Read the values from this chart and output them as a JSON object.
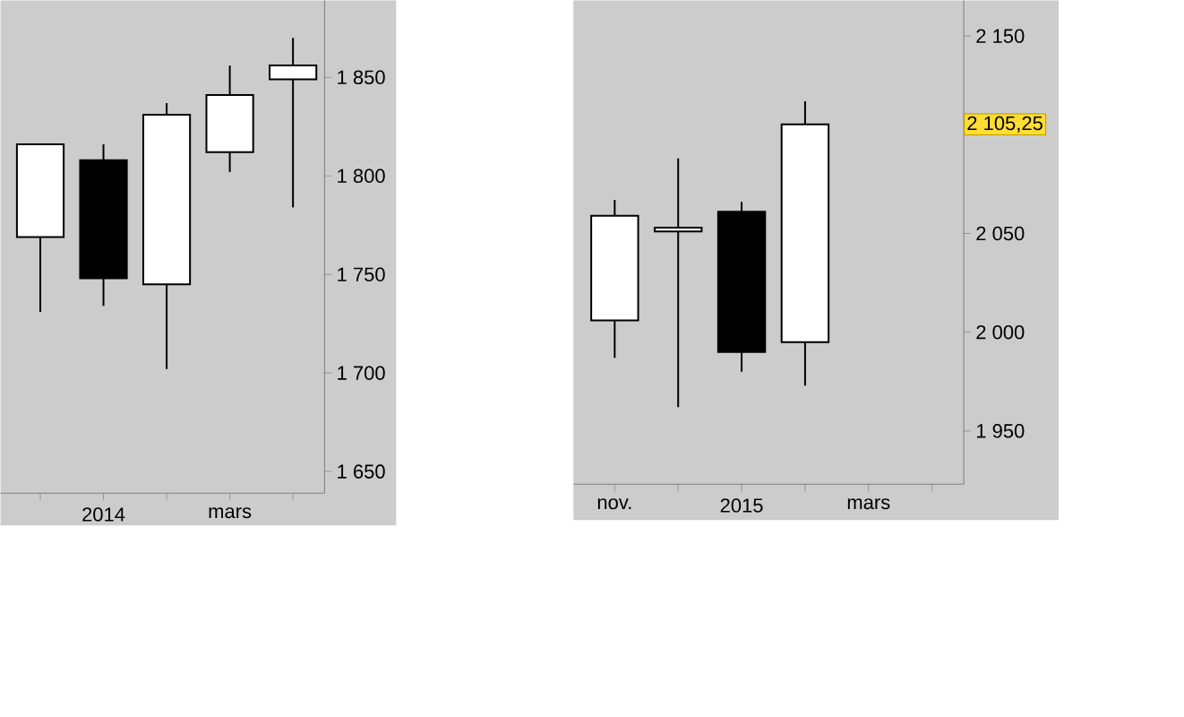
{
  "chart_data": [
    {
      "type": "candlestick",
      "categories": [
        null,
        "2014",
        null,
        "mars",
        null
      ],
      "ohlc": [
        [
          1769,
          1816,
          1731,
          1816
        ],
        [
          1808,
          1816,
          1734,
          1748
        ],
        [
          1745,
          1837,
          1702,
          1831
        ],
        [
          1812,
          1856,
          1802,
          1841
        ],
        [
          1849,
          1870,
          1784,
          1856
        ]
      ],
      "ylim": [
        1639,
        1889
      ],
      "yticks": [
        {
          "value": 1650,
          "label": "1 650"
        },
        {
          "value": 1700,
          "label": "1 700"
        },
        {
          "value": 1750,
          "label": "1 750"
        },
        {
          "value": 1800,
          "label": "1 800"
        },
        {
          "value": 1850,
          "label": "1 850"
        }
      ]
    },
    {
      "type": "candlestick",
      "categories": [
        "nov.",
        null,
        "2015",
        null,
        "mars",
        null
      ],
      "ohlc": [
        [
          2006,
          2067,
          1987,
          2059
        ],
        [
          2051,
          2088,
          1962,
          2053
        ],
        [
          2061,
          2066,
          1980,
          1990
        ],
        [
          1995,
          2117,
          1973,
          2105.25
        ],
        null,
        null
      ],
      "ylim": [
        1923,
        2168
      ],
      "yticks": [
        {
          "value": 1950,
          "label": "1 950"
        },
        {
          "value": 2000,
          "label": "2 000"
        },
        {
          "value": 2050,
          "label": "2 050"
        },
        {
          "value": 2100,
          "label": null
        },
        {
          "value": 2150,
          "label": "2 150"
        }
      ],
      "annotations": [
        "2 105,25"
      ]
    }
  ]
}
